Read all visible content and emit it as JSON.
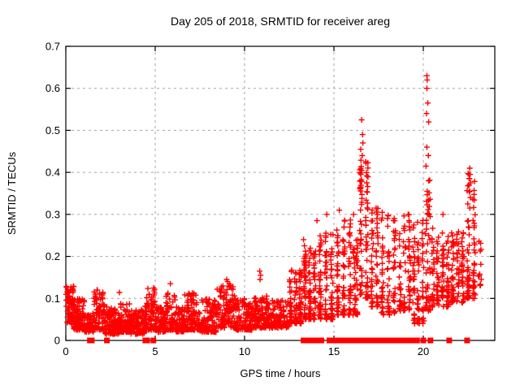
{
  "chart_data": {
    "type": "scatter",
    "title": "Day 205 of 2018, SRMTID for receiver areg",
    "xlabel": "GPS time / hours",
    "ylabel": "SRMTID / TECUs",
    "xlim": [
      0,
      24
    ],
    "ylim": [
      0,
      0.7
    ],
    "grid": true,
    "legend": "none",
    "marker": "plus",
    "marker_color": "#ff0000",
    "grid_color": "#a6a6a6",
    "frame_color": "#000000",
    "xticks": [
      [
        "0",
        0
      ],
      [
        "5",
        5
      ],
      [
        "10",
        10
      ],
      [
        "15",
        15
      ],
      [
        "20",
        20
      ]
    ],
    "yticks": [
      [
        "0",
        0
      ],
      [
        "0.1",
        0.1
      ],
      [
        "0.2",
        0.2
      ],
      [
        "0.3",
        0.3
      ],
      [
        "0.4",
        0.4
      ],
      [
        "0.5",
        0.5
      ],
      [
        "0.6",
        0.6
      ],
      [
        "0.7",
        0.7
      ]
    ],
    "seed": 20180205,
    "bands": [
      [
        0.02,
        0.45,
        0.04,
        0.13,
        70,
        1.2,
        0
      ],
      [
        0.45,
        1.05,
        0.025,
        0.1,
        90,
        1.5,
        0
      ],
      [
        1.05,
        1.55,
        0.02,
        0.065,
        70,
        1.5,
        0
      ],
      [
        1.55,
        2.2,
        0.025,
        0.12,
        80,
        1.8,
        0
      ],
      [
        2.2,
        3.0,
        0.015,
        0.08,
        110,
        1.6,
        0
      ],
      [
        3.0,
        3.6,
        0.02,
        0.09,
        90,
        1.8,
        0
      ],
      [
        3.6,
        4.4,
        0.015,
        0.075,
        110,
        1.6,
        0
      ],
      [
        4.4,
        5.05,
        0.025,
        0.125,
        90,
        1.8,
        0
      ],
      [
        5.05,
        5.6,
        0.02,
        0.08,
        70,
        1.6,
        0
      ],
      [
        5.6,
        6.15,
        0.025,
        0.115,
        70,
        1.8,
        0
      ],
      [
        6.15,
        6.65,
        0.02,
        0.08,
        70,
        1.6,
        0
      ],
      [
        6.65,
        7.45,
        0.025,
        0.115,
        100,
        1.8,
        0
      ],
      [
        7.45,
        8.45,
        0.02,
        0.1,
        110,
        1.8,
        0
      ],
      [
        8.45,
        9.45,
        0.03,
        0.135,
        120,
        1.8,
        0
      ],
      [
        9.45,
        10.45,
        0.025,
        0.1,
        120,
        1.7,
        0
      ],
      [
        10.45,
        11.25,
        0.03,
        0.11,
        100,
        1.8,
        0
      ],
      [
        11.25,
        12.45,
        0.03,
        0.095,
        130,
        1.6,
        0
      ],
      [
        12.45,
        13.25,
        0.04,
        0.17,
        100,
        1.8,
        1
      ],
      [
        13.25,
        14.05,
        0.05,
        0.22,
        110,
        1.7,
        1
      ],
      [
        14.05,
        15.05,
        0.05,
        0.26,
        120,
        1.8,
        1
      ],
      [
        15.05,
        16.05,
        0.06,
        0.29,
        110,
        1.7,
        1
      ],
      [
        16.05,
        16.35,
        0.06,
        0.24,
        45,
        1.5,
        0
      ],
      [
        16.35,
        17.0,
        0.1,
        0.45,
        85,
        1.4,
        1
      ],
      [
        17.0,
        17.55,
        0.08,
        0.33,
        60,
        1.5,
        1
      ],
      [
        17.55,
        18.55,
        0.06,
        0.3,
        85,
        1.5,
        1
      ],
      [
        18.55,
        19.35,
        0.07,
        0.3,
        75,
        1.5,
        1
      ],
      [
        19.35,
        20.1,
        0.04,
        0.3,
        85,
        1.8,
        1
      ],
      [
        20.1,
        20.4,
        0.07,
        0.4,
        45,
        1.4,
        0
      ],
      [
        20.4,
        21.5,
        0.08,
        0.27,
        115,
        1.6,
        1
      ],
      [
        21.5,
        22.35,
        0.09,
        0.26,
        90,
        1.5,
        1
      ],
      [
        22.35,
        23.0,
        0.1,
        0.4,
        80,
        1.7,
        1
      ],
      [
        23.0,
        23.3,
        0.13,
        0.25,
        12,
        1.5,
        0
      ]
    ],
    "outliers": [
      [
        16.55,
        0.525
      ],
      [
        16.6,
        0.49
      ],
      [
        16.62,
        0.47
      ],
      [
        16.5,
        0.455
      ],
      [
        16.58,
        0.44
      ],
      [
        20.2,
        0.63
      ],
      [
        20.22,
        0.62
      ],
      [
        20.2,
        0.6
      ],
      [
        20.25,
        0.565
      ],
      [
        20.18,
        0.54
      ],
      [
        20.3,
        0.52
      ],
      [
        20.2,
        0.46
      ],
      [
        20.28,
        0.44
      ],
      [
        20.15,
        0.415
      ],
      [
        20.3,
        0.38
      ],
      [
        20.22,
        0.355
      ],
      [
        22.6,
        0.41
      ],
      [
        22.62,
        0.395
      ],
      [
        22.58,
        0.385
      ],
      [
        22.65,
        0.375
      ],
      [
        22.6,
        0.355
      ],
      [
        22.63,
        0.34
      ],
      [
        22.6,
        0.315
      ],
      [
        10.85,
        0.165
      ],
      [
        10.9,
        0.155
      ],
      [
        10.87,
        0.145
      ],
      [
        5.85,
        0.135
      ],
      [
        9.0,
        0.145
      ],
      [
        9.05,
        0.14
      ],
      [
        3.0,
        0.114
      ],
      [
        13.3,
        0.24
      ],
      [
        13.35,
        0.225
      ],
      [
        14.05,
        0.285
      ],
      [
        14.6,
        0.3
      ],
      [
        15.3,
        0.31
      ],
      [
        16.1,
        0.3
      ],
      [
        17.7,
        0.305
      ],
      [
        18.0,
        0.29
      ],
      [
        19.15,
        0.3
      ],
      [
        19.2,
        0.285
      ],
      [
        21.1,
        0.3
      ]
    ],
    "zeros": [
      1.35,
      1.45,
      2.3,
      4.45,
      4.55,
      4.9,
      13.3,
      13.35,
      13.45,
      13.5,
      13.6,
      13.75,
      13.9,
      14.2,
      14.3,
      14.75,
      15.05,
      15.3,
      15.55,
      15.65,
      15.9,
      16.0,
      16.05,
      16.3,
      16.55,
      16.65,
      16.8,
      16.95,
      17.1,
      17.3,
      17.4,
      17.55,
      17.7,
      17.8,
      18.05,
      18.3,
      18.55,
      18.65,
      18.8,
      18.9,
      19.15,
      19.25,
      19.35,
      19.5,
      19.6,
      19.65,
      20.0,
      20.4,
      21.45,
      22.45
    ]
  }
}
